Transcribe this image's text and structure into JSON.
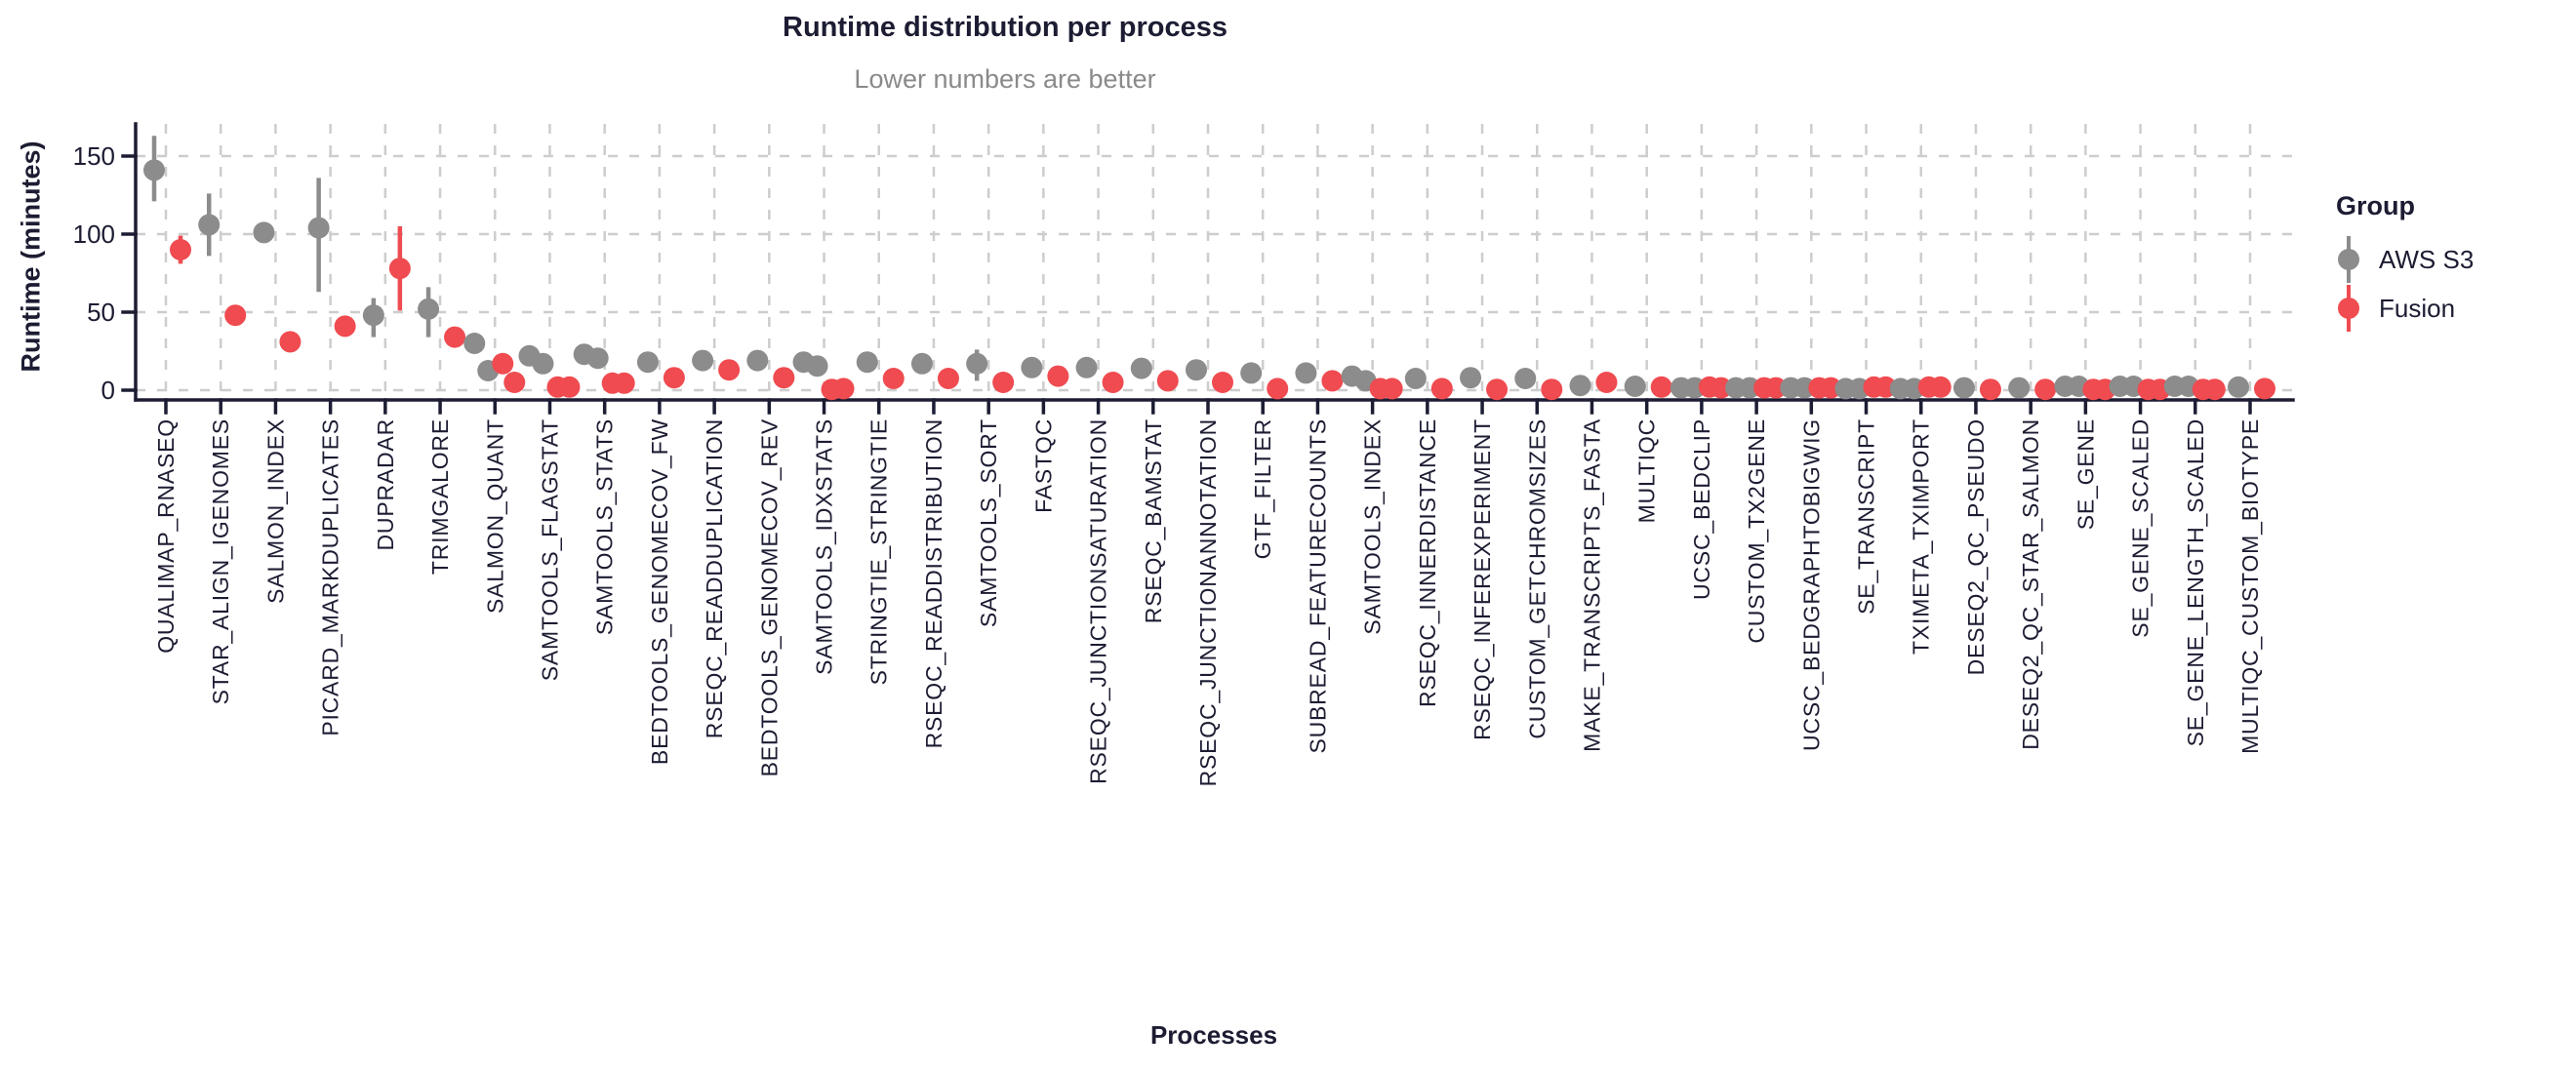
{
  "chart_data": {
    "type": "scatter",
    "title": "Runtime distribution per process",
    "subtitle": "Lower numbers are better",
    "xlabel": "Processes",
    "ylabel": "Runtime (minutes)",
    "yticks": [
      0,
      50,
      100,
      150
    ],
    "ylim": [
      -6,
      170
    ],
    "grid": "dashed",
    "legend": {
      "title": "Group",
      "entries": [
        {
          "label": "AWS S3",
          "color": "#8c8c8c"
        },
        {
          "label": "Fusion",
          "color": "#ef4b50"
        }
      ]
    },
    "colors": {
      "axis": "#1c1c33",
      "gridline": "#cdcdcd",
      "subtitle": "#8a8a8a"
    },
    "processes": [
      {
        "name": "QUALIMAP_RNASEQ",
        "aws": [
          141
        ],
        "aws_range": [
          121,
          163
        ],
        "fusion": [
          90
        ],
        "fusion_range": [
          81,
          99
        ]
      },
      {
        "name": "STAR_ALIGN_IGENOMES",
        "aws": [
          106
        ],
        "aws_range": [
          86,
          126
        ],
        "fusion": [
          48
        ]
      },
      {
        "name": "SALMON_INDEX",
        "aws": [
          101
        ],
        "fusion": [
          31
        ]
      },
      {
        "name": "PICARD_MARKDUPLICATES",
        "aws": [
          104
        ],
        "aws_range": [
          63,
          136
        ],
        "fusion": [
          41
        ]
      },
      {
        "name": "DUPRADAR",
        "aws": [
          48
        ],
        "aws_range": [
          34,
          59
        ],
        "fusion": [
          78
        ],
        "fusion_range": [
          51,
          105
        ]
      },
      {
        "name": "TRIMGALORE",
        "aws": [
          52
        ],
        "aws_range": [
          34,
          66
        ],
        "fusion": [
          34
        ]
      },
      {
        "name": "SALMON_QUANT",
        "aws": [
          30,
          12.5
        ],
        "fusion": [
          17,
          5
        ]
      },
      {
        "name": "SAMTOOLS_FLAGSTAT",
        "aws": [
          22,
          17
        ],
        "fusion": [
          2,
          2
        ]
      },
      {
        "name": "SAMTOOLS_STATS",
        "aws": [
          23,
          20.5
        ],
        "fusion": [
          4.5,
          4.5
        ]
      },
      {
        "name": "BEDTOOLS_GENOMECOV_FW",
        "aws": [
          18
        ],
        "fusion": [
          8
        ]
      },
      {
        "name": "RSEQC_READDUPLICATION",
        "aws": [
          19
        ],
        "fusion": [
          13
        ]
      },
      {
        "name": "BEDTOOLS_GENOMECOV_REV",
        "aws": [
          19
        ],
        "fusion": [
          8
        ]
      },
      {
        "name": "SAMTOOLS_IDXSTATS",
        "aws": [
          18,
          15.5
        ],
        "fusion": [
          0.5,
          1
        ]
      },
      {
        "name": "STRINGTIE_STRINGTIE",
        "aws": [
          18
        ],
        "fusion": [
          7.5
        ]
      },
      {
        "name": "RSEQC_READDISTRIBUTION",
        "aws": [
          17
        ],
        "fusion": [
          7.5
        ]
      },
      {
        "name": "SAMTOOLS_SORT",
        "aws": [
          17
        ],
        "aws_range": [
          6,
          26
        ],
        "fusion": [
          5
        ]
      },
      {
        "name": "FASTQC",
        "aws": [
          14.5
        ],
        "fusion": [
          9
        ]
      },
      {
        "name": "RSEQC_JUNCTIONSATURATION",
        "aws": [
          14.5
        ],
        "fusion": [
          5
        ]
      },
      {
        "name": "RSEQC_BAMSTAT",
        "aws": [
          14
        ],
        "fusion": [
          6
        ]
      },
      {
        "name": "RSEQC_JUNCTIONANNOTATION",
        "aws": [
          13
        ],
        "fusion": [
          5
        ]
      },
      {
        "name": "GTF_FILTER",
        "aws": [
          11
        ],
        "fusion": [
          1
        ]
      },
      {
        "name": "SUBREAD_FEATURECOUNTS",
        "aws": [
          11
        ],
        "fusion": [
          6
        ]
      },
      {
        "name": "SAMTOOLS_INDEX",
        "aws": [
          9,
          6
        ],
        "fusion": [
          1,
          1
        ]
      },
      {
        "name": "RSEQC_INNERDISTANCE",
        "aws": [
          7.5
        ],
        "fusion": [
          1
        ]
      },
      {
        "name": "RSEQC_INFEREXPERIMENT",
        "aws": [
          8
        ],
        "fusion": [
          0.5
        ]
      },
      {
        "name": "CUSTOM_GETCHROMSIZES",
        "aws": [
          7.5
        ],
        "fusion": [
          0.5
        ]
      },
      {
        "name": "MAKE_TRANSCRIPTS_FASTA",
        "aws": [
          3
        ],
        "fusion": [
          5
        ]
      },
      {
        "name": "MULTIQC",
        "aws": [
          2.5
        ],
        "fusion": [
          2
        ]
      },
      {
        "name": "UCSC_BEDCLIP",
        "aws": [
          1.5,
          1.5
        ],
        "fusion": [
          2,
          1.5
        ]
      },
      {
        "name": "CUSTOM_TX2GENE",
        "aws": [
          1.5,
          1.5
        ],
        "fusion": [
          1.5,
          1.5
        ]
      },
      {
        "name": "UCSC_BEDGRAPHTOBIGWIG",
        "aws": [
          1.5,
          1.5
        ],
        "fusion": [
          1.5,
          1.5
        ]
      },
      {
        "name": "SE_TRANSCRIPT",
        "aws": [
          1,
          1
        ],
        "fusion": [
          2,
          2
        ]
      },
      {
        "name": "TXIMETA_TXIMPORT",
        "aws": [
          1,
          1
        ],
        "fusion": [
          2,
          2
        ]
      },
      {
        "name": "DESEQ2_QC_PSEUDO",
        "aws": [
          1.5
        ],
        "fusion": [
          0.5
        ]
      },
      {
        "name": "DESEQ2_QC_STAR_SALMON",
        "aws": [
          1.5
        ],
        "fusion": [
          0.5
        ]
      },
      {
        "name": "SE_GENE",
        "aws": [
          2.5,
          2.5
        ],
        "fusion": [
          0.5,
          0.5
        ]
      },
      {
        "name": "SE_GENE_SCALED",
        "aws": [
          2.5,
          2.5
        ],
        "fusion": [
          0.5,
          0.5
        ]
      },
      {
        "name": "SE_GENE_LENGTH_SCALED",
        "aws": [
          2.5,
          2.5
        ],
        "fusion": [
          0.5,
          0.5
        ]
      },
      {
        "name": "MULTIQC_CUSTOM_BIOTYPE",
        "aws": [
          2
        ],
        "fusion": [
          1
        ]
      }
    ]
  }
}
